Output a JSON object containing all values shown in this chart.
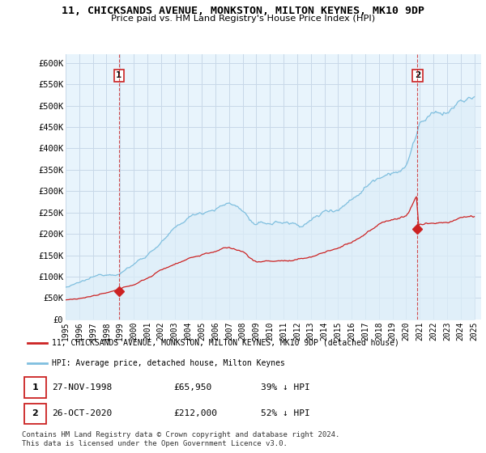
{
  "title_line1": "11, CHICKSANDS AVENUE, MONKSTON, MILTON KEYNES, MK10 9DP",
  "title_line2": "Price paid vs. HM Land Registry's House Price Index (HPI)",
  "ylim": [
    0,
    620000
  ],
  "yticks": [
    0,
    50000,
    100000,
    150000,
    200000,
    250000,
    300000,
    350000,
    400000,
    450000,
    500000,
    550000,
    600000
  ],
  "ytick_labels": [
    "£0",
    "£50K",
    "£100K",
    "£150K",
    "£200K",
    "£250K",
    "£300K",
    "£350K",
    "£400K",
    "£450K",
    "£500K",
    "£550K",
    "£600K"
  ],
  "sale1_date": 1998.92,
  "sale1_price": 65950,
  "sale1_label": "1",
  "sale2_date": 2020.83,
  "sale2_price": 212000,
  "sale2_label": "2",
  "legend_line1": "11, CHICKSANDS AVENUE, MONKSTON, MILTON KEYNES, MK10 9DP (detached house)",
  "legend_line2": "HPI: Average price, detached house, Milton Keynes",
  "footer": "Contains HM Land Registry data © Crown copyright and database right 2024.\nThis data is licensed under the Open Government Licence v3.0.",
  "hpi_color": "#7fbfdf",
  "hpi_fill_color": "#ddeef8",
  "sale_color": "#cc2222",
  "bg_color": "#ffffff",
  "chart_bg_color": "#e8f4fc",
  "grid_color": "#c8d8e8"
}
